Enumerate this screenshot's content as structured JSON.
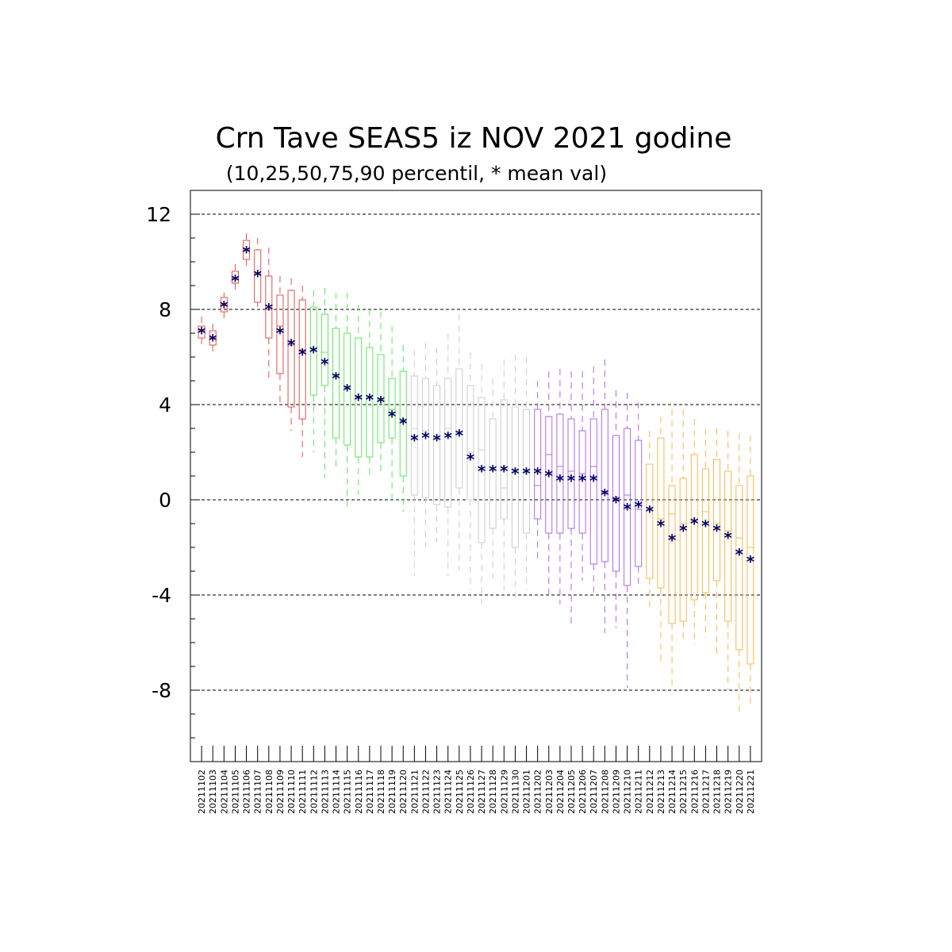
{
  "chart_data": {
    "type": "box",
    "title": "Crn Tave SEAS5 iz NOV 2021 godine",
    "subtitle": "(10,25,50,75,90 percentil, * mean val)",
    "xlabel": "",
    "ylabel": "",
    "ylim": [
      -11,
      13
    ],
    "yticks": [
      -8,
      -4,
      0,
      4,
      8,
      12
    ],
    "grid": "horizontal-dashed",
    "mean_marker": "*",
    "mean_color": "#000066",
    "colors": {
      "november": "#e05050",
      "week2": "#5ee65e",
      "week3": "#cccccc",
      "december": "#b266e6",
      "late_december": "#f5b84a"
    },
    "categories": [
      "20211102",
      "20211103",
      "20211104",
      "20211105",
      "20211106",
      "20211107",
      "20211108",
      "20211109",
      "20211110",
      "20211111",
      "20211112",
      "20211113",
      "20211114",
      "20211115",
      "20211116",
      "20211117",
      "20211118",
      "20211119",
      "20211120",
      "20211121",
      "20211122",
      "20211123",
      "20211124",
      "20211125",
      "20211126",
      "20211127",
      "20211128",
      "20211129",
      "20211130",
      "20211201",
      "20211202",
      "20211203",
      "20211204",
      "20211205",
      "20211206",
      "20211207",
      "20211208",
      "20211209",
      "20211210",
      "20211211",
      "20211212",
      "20211213",
      "20211214",
      "20211215",
      "20211216",
      "20211217",
      "20211218",
      "20211219",
      "20211220",
      "20211221"
    ],
    "groups": [
      "november",
      "november",
      "november",
      "november",
      "november",
      "november",
      "november",
      "november",
      "november",
      "november",
      "week2",
      "week2",
      "week2",
      "week2",
      "week2",
      "week2",
      "week2",
      "week2",
      "week2",
      "week3",
      "week3",
      "week3",
      "week3",
      "week3",
      "week3",
      "week3",
      "week3",
      "week3",
      "week3",
      "week3",
      "december",
      "december",
      "december",
      "december",
      "december",
      "december",
      "december",
      "december",
      "december",
      "december",
      "late_december",
      "late_december",
      "late_december",
      "late_december",
      "late_december",
      "late_december",
      "late_december",
      "late_december",
      "late_december",
      "late_december"
    ],
    "p10": [
      6.5,
      6.1,
      7.6,
      8.8,
      9.8,
      8.1,
      5.0,
      4.0,
      2.9,
      1.8,
      2.0,
      0.9,
      1.4,
      -0.5,
      0.2,
      1.0,
      1.1,
      0.0,
      -0.5,
      -3.2,
      -2.0,
      -1.8,
      -3.2,
      -3.0,
      -3.8,
      -4.6,
      -3.5,
      -3.8,
      -4.2,
      -3.8,
      -2.5,
      -4.0,
      -4.4,
      -5.4,
      -3.4,
      -4.1,
      -5.6,
      -5.4,
      -7.9,
      -3.6,
      -4.6,
      -6.9,
      -7.8,
      -6.0,
      -6.1,
      -5.8,
      -6.5,
      -8.0,
      -9.1,
      -8.6
    ],
    "p25": [
      6.8,
      6.5,
      7.9,
      9.1,
      10.1,
      8.3,
      6.8,
      5.3,
      3.9,
      3.4,
      4.4,
      4.8,
      2.6,
      2.3,
      1.8,
      1.8,
      2.4,
      2.6,
      1.0,
      0.2,
      0.1,
      -0.2,
      -0.3,
      0.5,
      0.0,
      -1.8,
      -1.2,
      -0.8,
      -2.0,
      -1.4,
      -0.8,
      -1.4,
      -1.4,
      -1.2,
      -1.4,
      -2.7,
      -2.6,
      -3.0,
      -3.6,
      -2.8,
      -3.3,
      -3.7,
      -5.2,
      -5.1,
      -4.2,
      -3.9,
      -3.4,
      -5.1,
      -6.3,
      -6.9
    ],
    "p50": [
      7.1,
      6.8,
      8.2,
      9.3,
      10.5,
      9.5,
      8.0,
      7.3,
      6.5,
      6.3,
      6.3,
      6.2,
      5.2,
      4.7,
      4.3,
      4.3,
      4.2,
      3.8,
      3.3,
      3.0,
      2.9,
      2.6,
      3.0,
      2.8,
      2.0,
      2.1,
      1.3,
      0.5,
      1.3,
      1.2,
      0.6,
      1.9,
      1.4,
      1.2,
      1.1,
      1.4,
      0.3,
      0.1,
      0.2,
      -0.4,
      -0.4,
      -0.8,
      -0.6,
      -1.0,
      -0.9,
      -0.5,
      -1.0,
      -1.3,
      -1.6,
      -2.0
    ],
    "p75": [
      7.3,
      7.1,
      8.5,
      9.6,
      10.9,
      10.5,
      9.4,
      8.6,
      8.8,
      8.4,
      8.1,
      7.8,
      7.2,
      7.0,
      6.8,
      6.4,
      6.1,
      5.1,
      5.4,
      5.2,
      5.1,
      4.8,
      5.1,
      5.5,
      4.8,
      4.3,
      3.4,
      4.2,
      3.9,
      3.8,
      3.8,
      3.5,
      3.6,
      3.4,
      2.9,
      3.4,
      3.8,
      2.7,
      3.0,
      2.5,
      1.5,
      2.6,
      0.6,
      0.9,
      1.9,
      1.3,
      1.7,
      1.2,
      0.6,
      1.0
    ],
    "p90": [
      7.7,
      7.4,
      8.7,
      9.9,
      11.2,
      11.0,
      10.6,
      9.4,
      9.3,
      9.0,
      8.8,
      8.9,
      8.7,
      8.7,
      8.2,
      8.0,
      7.9,
      7.3,
      6.5,
      6.3,
      6.6,
      6.4,
      7.0,
      7.8,
      6.2,
      5.7,
      5.1,
      5.9,
      6.1,
      6.0,
      5.0,
      5.4,
      5.5,
      5.4,
      5.4,
      5.6,
      5.9,
      4.6,
      4.5,
      4.1,
      2.9,
      3.5,
      3.8,
      3.8,
      3.4,
      3.0,
      3.0,
      2.9,
      2.8,
      2.7
    ],
    "mean": [
      7.1,
      6.8,
      8.2,
      9.3,
      10.5,
      9.5,
      8.1,
      7.1,
      6.6,
      6.2,
      6.3,
      5.8,
      5.2,
      4.7,
      4.3,
      4.3,
      4.2,
      3.6,
      3.3,
      2.6,
      2.7,
      2.6,
      2.7,
      2.8,
      1.8,
      1.3,
      1.3,
      1.3,
      1.2,
      1.2,
      1.2,
      1.1,
      0.9,
      0.9,
      0.9,
      0.9,
      0.3,
      0.0,
      -0.3,
      -0.2,
      -0.4,
      -1.0,
      -1.6,
      -1.2,
      -0.9,
      -1.0,
      -1.2,
      -1.5,
      -2.2,
      -2.5
    ]
  }
}
